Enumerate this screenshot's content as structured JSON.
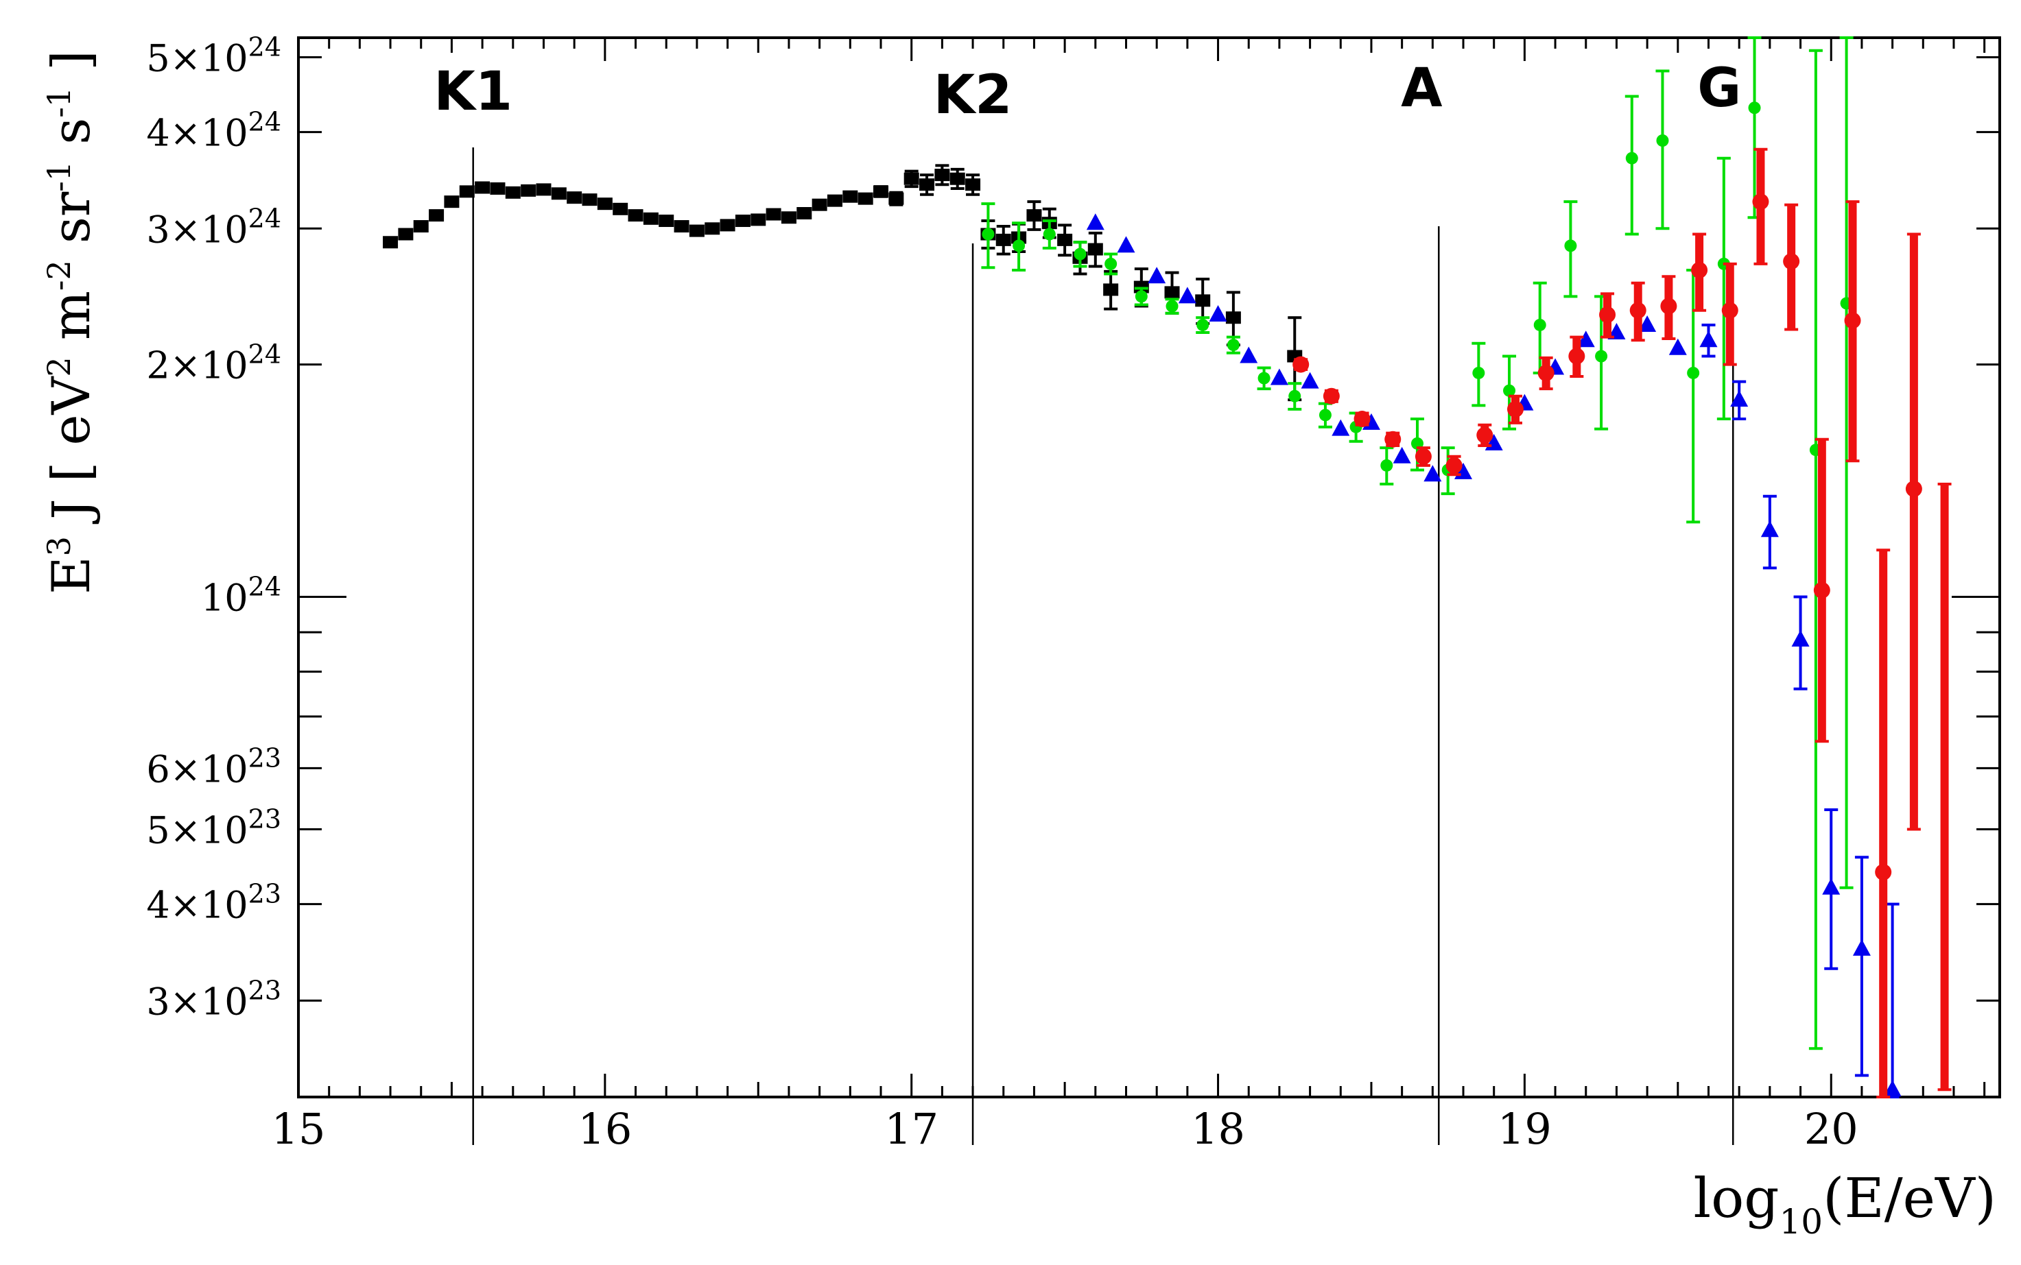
{
  "chart_data": {
    "type": "scatter",
    "title": "",
    "ylabel_parts": {
      "base": "E",
      "sup1": "3",
      "rest1": " J [ eV",
      "sup2": "2",
      "rest2": " m",
      "sup3": "-2",
      "rest3": " sr",
      "sup4": "-1",
      "rest4": " s",
      "sup5": "-1",
      "rest5": " ]"
    },
    "xlabel_parts": {
      "base": "log",
      "sub": "10",
      "rest": "(E/eV)"
    },
    "xlim": [
      15,
      20.55
    ],
    "ylim": [
      2.25e+23,
      5.3e+24
    ],
    "yscale": "log",
    "grid": false,
    "x_ticks": [
      {
        "value": 15,
        "label": "15"
      },
      {
        "value": 16,
        "label": "16"
      },
      {
        "value": 17,
        "label": "17"
      },
      {
        "value": 18,
        "label": "18"
      },
      {
        "value": 19,
        "label": "19"
      },
      {
        "value": 20,
        "label": "20"
      }
    ],
    "y_ticks": [
      {
        "value": 3e+23,
        "mant": "3×10",
        "exp": "23"
      },
      {
        "value": 4e+23,
        "mant": "4×10",
        "exp": "23"
      },
      {
        "value": 5e+23,
        "mant": "5×10",
        "exp": "23"
      },
      {
        "value": 6e+23,
        "mant": "6×10",
        "exp": "23"
      },
      {
        "value": 1e+24,
        "mant": "10",
        "exp": "24"
      },
      {
        "value": 2e+24,
        "mant": "2×10",
        "exp": "24"
      },
      {
        "value": 3e+24,
        "mant": "3×10",
        "exp": "24"
      },
      {
        "value": 4e+24,
        "mant": "4×10",
        "exp": "24"
      },
      {
        "value": 5e+24,
        "mant": "5×10",
        "exp": "24"
      }
    ],
    "features": [
      {
        "label": "K1",
        "x": 15.57
      },
      {
        "label": "K2",
        "x": 17.2
      },
      {
        "label": "A",
        "x": 18.72
      },
      {
        "label": "G",
        "x": 19.68
      }
    ],
    "series": [
      {
        "color": "#000000",
        "marker": "square",
        "points": [
          {
            "x": 15.3,
            "y": 2.88e+24
          },
          {
            "x": 15.35,
            "y": 2.95e+24
          },
          {
            "x": 15.4,
            "y": 3.02e+24
          },
          {
            "x": 15.45,
            "y": 3.12e+24
          },
          {
            "x": 15.5,
            "y": 3.25e+24
          },
          {
            "x": 15.55,
            "y": 3.35e+24
          },
          {
            "x": 15.6,
            "y": 3.39e+24
          },
          {
            "x": 15.65,
            "y": 3.38e+24
          },
          {
            "x": 15.7,
            "y": 3.34e+24
          },
          {
            "x": 15.75,
            "y": 3.36e+24
          },
          {
            "x": 15.8,
            "y": 3.37e+24
          },
          {
            "x": 15.85,
            "y": 3.33e+24
          },
          {
            "x": 15.9,
            "y": 3.29e+24
          },
          {
            "x": 15.95,
            "y": 3.27e+24
          },
          {
            "x": 16.0,
            "y": 3.23e+24
          },
          {
            "x": 16.05,
            "y": 3.18e+24
          },
          {
            "x": 16.1,
            "y": 3.12e+24
          },
          {
            "x": 16.15,
            "y": 3.09e+24
          },
          {
            "x": 16.2,
            "y": 3.07e+24
          },
          {
            "x": 16.25,
            "y": 3.02e+24
          },
          {
            "x": 16.3,
            "y": 2.98e+24
          },
          {
            "x": 16.35,
            "y": 3e+24
          },
          {
            "x": 16.4,
            "y": 3.03e+24
          },
          {
            "x": 16.45,
            "y": 3.07e+24
          },
          {
            "x": 16.5,
            "y": 3.08e+24
          },
          {
            "x": 16.55,
            "y": 3.13e+24
          },
          {
            "x": 16.6,
            "y": 3.1e+24
          },
          {
            "x": 16.65,
            "y": 3.14e+24
          },
          {
            "x": 16.7,
            "y": 3.22e+24
          },
          {
            "x": 16.75,
            "y": 3.26e+24
          },
          {
            "x": 16.8,
            "y": 3.3e+24
          },
          {
            "x": 16.85,
            "y": 3.28e+24
          },
          {
            "x": 16.9,
            "y": 3.35e+24,
            "yerr": 5e+22
          },
          {
            "x": 16.95,
            "y": 3.28e+24,
            "yerr": 6e+22
          },
          {
            "x": 17.0,
            "y": 3.48e+24,
            "yerr": 8e+22
          },
          {
            "x": 17.05,
            "y": 3.42e+24,
            "yerr": 1e+23
          },
          {
            "x": 17.1,
            "y": 3.52e+24,
            "yerr": 1e+23
          },
          {
            "x": 17.15,
            "y": 3.48e+24,
            "yerr": 1e+23
          },
          {
            "x": 17.2,
            "y": 3.42e+24,
            "yerr": 1e+23
          },
          {
            "x": 17.25,
            "y": 2.95e+24,
            "yerr": 1.2e+23
          },
          {
            "x": 17.3,
            "y": 2.9e+24,
            "yerr": 1.2e+23
          },
          {
            "x": 17.35,
            "y": 2.92e+24,
            "yerr": 1.2e+23
          },
          {
            "x": 17.4,
            "y": 3.12e+24,
            "yerr": 1.3e+23
          },
          {
            "x": 17.45,
            "y": 3.05e+24,
            "yerr": 1.3e+23
          },
          {
            "x": 17.5,
            "y": 2.9e+24,
            "yerr": 1.3e+23
          },
          {
            "x": 17.55,
            "y": 2.75e+24,
            "yerr": 1.3e+23
          },
          {
            "x": 17.6,
            "y": 2.82e+24,
            "yerr": 1.4e+23
          },
          {
            "x": 17.65,
            "y": 2.5e+24,
            "yerr": 1.4e+23
          },
          {
            "x": 17.75,
            "y": 2.52e+24,
            "yerr": 1.4e+23
          },
          {
            "x": 17.85,
            "y": 2.48e+24,
            "yerr": 1.5e+23
          },
          {
            "x": 17.95,
            "y": 2.42e+24,
            "yerr": 1.6e+23
          },
          {
            "x": 18.05,
            "y": 2.3e+24,
            "yerr": 1.8e+23
          },
          {
            "x": 18.25,
            "y": 2.05e+24,
            "yerr": 2.5e+23
          }
        ]
      },
      {
        "color": "#00dd00",
        "marker": "circle",
        "points": [
          {
            "x": 17.25,
            "y": 2.95e+24,
            "yerr": 2.8e+23
          },
          {
            "x": 17.35,
            "y": 2.85e+24,
            "yerr": 2e+23
          },
          {
            "x": 17.45,
            "y": 2.95e+24,
            "yerr": 1.2e+23
          },
          {
            "x": 17.55,
            "y": 2.78e+24,
            "yerr": 1e+23
          },
          {
            "x": 17.65,
            "y": 2.7e+24,
            "yerr": 8e+22
          },
          {
            "x": 17.75,
            "y": 2.45e+24,
            "yerr": 6e+22
          },
          {
            "x": 17.85,
            "y": 2.38e+24,
            "yerr": 5e+22
          },
          {
            "x": 17.95,
            "y": 2.25e+24,
            "yerr": 5e+22
          },
          {
            "x": 18.05,
            "y": 2.12e+24,
            "yerr": 5e+22
          },
          {
            "x": 18.15,
            "y": 1.92e+24,
            "yerr": 6e+22
          },
          {
            "x": 18.25,
            "y": 1.82e+24,
            "yerr": 7e+22
          },
          {
            "x": 18.35,
            "y": 1.72e+24,
            "yerr": 6e+22
          },
          {
            "x": 18.45,
            "y": 1.66e+24,
            "yerr": 7e+22
          },
          {
            "x": 18.55,
            "y": 1.48e+24,
            "yerr": 8e+22
          },
          {
            "x": 18.65,
            "y": 1.58e+24,
            "yerr": 1.2e+23
          },
          {
            "x": 18.75,
            "y": 1.46e+24,
            "yerr": 1e+23
          },
          {
            "x": 18.85,
            "y": 1.95e+24,
            "yerr": 1.8e+23
          },
          {
            "x": 18.95,
            "y": 1.85e+24,
            "yerr": 2e+23
          },
          {
            "x": 19.05,
            "y": 2.25e+24,
            "yerr": 3e+23
          },
          {
            "x": 19.15,
            "y": 2.85e+24,
            "yerr": 4e+23
          },
          {
            "x": 19.25,
            "y": 2.05e+24,
            "yerr": 4e+23
          },
          {
            "x": 19.35,
            "y": 3.7e+24,
            "yerr": 7.5e+23
          },
          {
            "x": 19.45,
            "y": 3.9e+24,
            "yerr": 9e+23
          },
          {
            "x": 19.55,
            "y": 1.95e+24,
            "yerr": 7e+23
          },
          {
            "x": 19.65,
            "y": 2.7e+24,
            "yerr": 1e+24
          },
          {
            "x": 19.75,
            "y": 4.3e+24,
            "yerr": 1.2e+24
          },
          {
            "x": 19.95,
            "y": 1.55e+24,
            "ylo": 2.6e+23,
            "yhi": 5.1e+24
          },
          {
            "x": 20.05,
            "y": 2.4e+24,
            "ylo": 4.2e+23,
            "yhi": 5.3e+24
          }
        ]
      },
      {
        "color": "#0000ee",
        "marker": "triangle",
        "points": [
          {
            "x": 17.6,
            "y": 3.05e+24
          },
          {
            "x": 17.7,
            "y": 2.85e+24
          },
          {
            "x": 17.8,
            "y": 2.6e+24
          },
          {
            "x": 17.9,
            "y": 2.45e+24
          },
          {
            "x": 18.0,
            "y": 2.32e+24
          },
          {
            "x": 18.1,
            "y": 2.05e+24
          },
          {
            "x": 18.2,
            "y": 1.92e+24
          },
          {
            "x": 18.3,
            "y": 1.9e+24
          },
          {
            "x": 18.4,
            "y": 1.65e+24
          },
          {
            "x": 18.5,
            "y": 1.68e+24
          },
          {
            "x": 18.6,
            "y": 1.52e+24
          },
          {
            "x": 18.7,
            "y": 1.44e+24
          },
          {
            "x": 18.8,
            "y": 1.45e+24
          },
          {
            "x": 18.9,
            "y": 1.58e+24
          },
          {
            "x": 19.0,
            "y": 1.78e+24
          },
          {
            "x": 19.1,
            "y": 1.98e+24
          },
          {
            "x": 19.2,
            "y": 2.15e+24
          },
          {
            "x": 19.3,
            "y": 2.2e+24
          },
          {
            "x": 19.4,
            "y": 2.25e+24
          },
          {
            "x": 19.5,
            "y": 2.1e+24
          },
          {
            "x": 19.6,
            "y": 2.15e+24,
            "yerr": 1e+23
          },
          {
            "x": 19.7,
            "y": 1.8e+24,
            "yerr": 1e+23
          },
          {
            "x": 19.8,
            "y": 1.22e+24,
            "yerr": 1.3e+23
          },
          {
            "x": 19.9,
            "y": 8.8e+23,
            "yerr": 1.2e+23
          },
          {
            "x": 20.0,
            "y": 4.2e+23,
            "ylo": 3.3e+23,
            "yhi": 5.3e+23
          },
          {
            "x": 20.1,
            "y": 3.5e+23,
            "ylo": 2.4e+23,
            "yhi": 4.6e+23
          },
          {
            "x": 20.2,
            "y": 2.3e+23,
            "ylo": 1.7e+23,
            "yhi": 4e+23
          }
        ]
      },
      {
        "color": "#ee1111",
        "marker": "circle",
        "points": [
          {
            "x": 18.27,
            "y": 2e+24,
            "yerr": 3e+22
          },
          {
            "x": 18.37,
            "y": 1.82e+24,
            "yerr": 3e+22
          },
          {
            "x": 18.47,
            "y": 1.7e+24,
            "yerr": 3e+22
          },
          {
            "x": 18.57,
            "y": 1.6e+24,
            "yerr": 3e+22
          },
          {
            "x": 18.67,
            "y": 1.52e+24,
            "yerr": 4e+22
          },
          {
            "x": 18.77,
            "y": 1.48e+24,
            "yerr": 4e+22
          },
          {
            "x": 18.87,
            "y": 1.62e+24,
            "yerr": 5e+22
          },
          {
            "x": 18.97,
            "y": 1.75e+24,
            "yerr": 7e+22
          },
          {
            "x": 19.07,
            "y": 1.95e+24,
            "yerr": 9e+22
          },
          {
            "x": 19.17,
            "y": 2.05e+24,
            "yerr": 1.2e+23
          },
          {
            "x": 19.27,
            "y": 2.32e+24,
            "yerr": 1.5e+23
          },
          {
            "x": 19.37,
            "y": 2.35e+24,
            "yerr": 2e+23
          },
          {
            "x": 19.47,
            "y": 2.38e+24,
            "yerr": 2.2e+23
          },
          {
            "x": 19.57,
            "y": 2.65e+24,
            "yerr": 3e+23
          },
          {
            "x": 19.67,
            "y": 2.35e+24,
            "yerr": 3.5e+23
          },
          {
            "x": 19.77,
            "y": 3.25e+24,
            "yerr": 5.5e+23
          },
          {
            "x": 19.87,
            "y": 2.72e+24,
            "yerr": 5e+23
          },
          {
            "x": 19.97,
            "y": 1.02e+24,
            "ylo": 6.5e+23,
            "yhi": 1.6e+24
          },
          {
            "x": 20.07,
            "y": 2.28e+24,
            "ylo": 1.5e+24,
            "yhi": 3.25e+24
          },
          {
            "x": 20.17,
            "y": 4.4e+23,
            "ylo": 2e+23,
            "yhi": 1.15e+24
          },
          {
            "x": 20.27,
            "y": 1.38e+24,
            "ylo": 5e+23,
            "yhi": 2.95e+24
          },
          {
            "x": 20.37,
            "y": 0,
            "ylo": 2.3e+23,
            "yhi": 1.4e+24,
            "no_marker": true
          }
        ]
      }
    ]
  }
}
